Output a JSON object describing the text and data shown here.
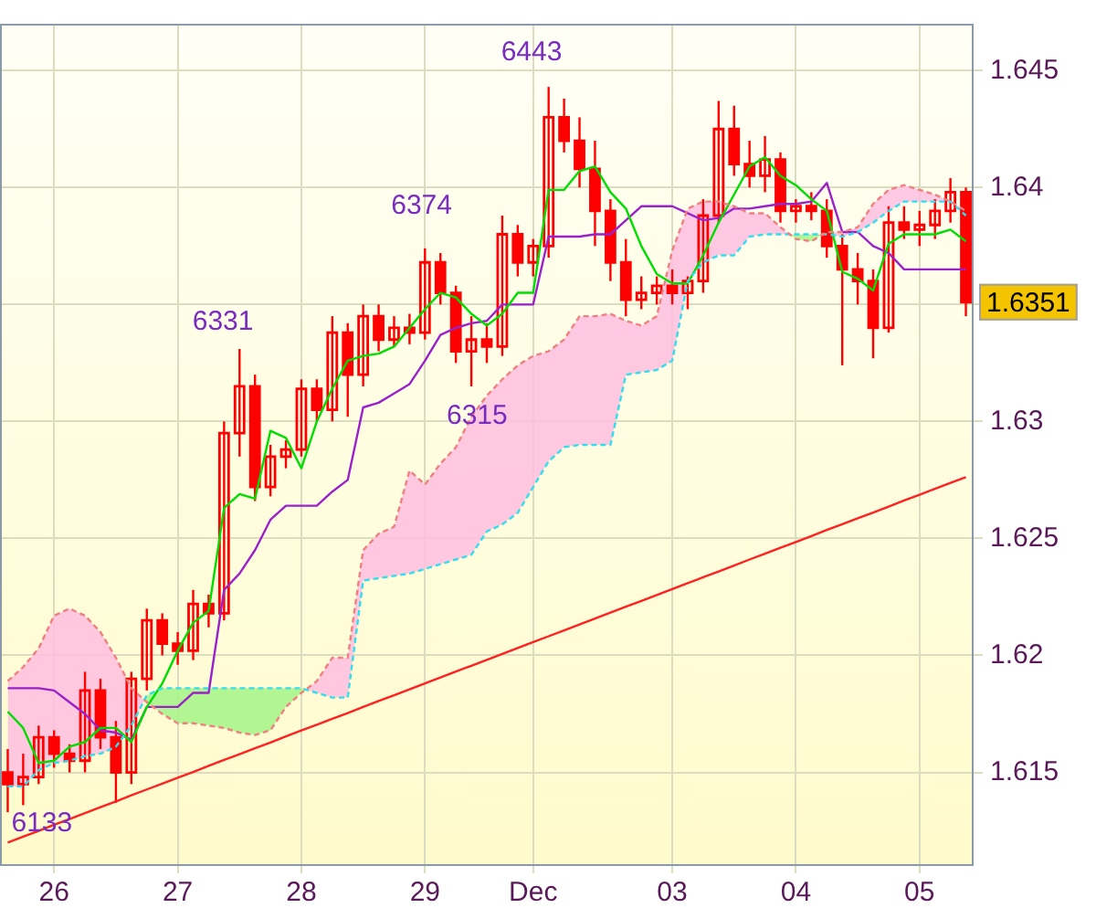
{
  "chart_data": {
    "type": "candlestick",
    "color": "#ff0000",
    "categories": [
      null,
      null,
      null,
      "26",
      null,
      null,
      null,
      null,
      null,
      null,
      null,
      "27",
      null,
      null,
      null,
      null,
      null,
      null,
      null,
      "28",
      null,
      null,
      null,
      null,
      null,
      null,
      null,
      "29",
      null,
      null,
      null,
      null,
      null,
      null,
      "Dec",
      null,
      null,
      null,
      null,
      null,
      null,
      null,
      null,
      "03",
      null,
      null,
      null,
      null,
      null,
      null,
      null,
      "04",
      null,
      null,
      null,
      null,
      null,
      null,
      null,
      "05",
      null,
      null,
      null
    ],
    "ohlc": [
      [
        1.615,
        1.616,
        1.6133,
        1.6145
      ],
      [
        1.6145,
        1.6158,
        1.6136,
        1.6148
      ],
      [
        1.6148,
        1.617,
        1.6145,
        1.6165
      ],
      [
        1.6165,
        1.6168,
        1.6152,
        1.6158
      ],
      [
        1.6158,
        1.6162,
        1.615,
        1.6155
      ],
      [
        1.6155,
        1.6193,
        1.615,
        1.6185
      ],
      [
        1.6185,
        1.619,
        1.616,
        1.6165
      ],
      [
        1.6165,
        1.6172,
        1.6137,
        1.615
      ],
      [
        1.615,
        1.6193,
        1.6145,
        1.619
      ],
      [
        1.619,
        1.622,
        1.6185,
        1.6215
      ],
      [
        1.6215,
        1.6218,
        1.62,
        1.6205
      ],
      [
        1.6205,
        1.621,
        1.6196,
        1.6202
      ],
      [
        1.6202,
        1.6228,
        1.6198,
        1.6222
      ],
      [
        1.6222,
        1.6226,
        1.6212,
        1.6218
      ],
      [
        1.6218,
        1.63,
        1.6215,
        1.6295
      ],
      [
        1.6295,
        1.6331,
        1.6285,
        1.6315
      ],
      [
        1.6315,
        1.632,
        1.6266,
        1.6272
      ],
      [
        1.6272,
        1.629,
        1.6268,
        1.6285
      ],
      [
        1.6285,
        1.6292,
        1.628,
        1.6288
      ],
      [
        1.6288,
        1.6318,
        1.6285,
        1.6314
      ],
      [
        1.6314,
        1.6318,
        1.63,
        1.6305
      ],
      [
        1.6305,
        1.6345,
        1.63,
        1.6338
      ],
      [
        1.6338,
        1.6342,
        1.6302,
        1.632
      ],
      [
        1.632,
        1.635,
        1.6315,
        1.6345
      ],
      [
        1.6345,
        1.635,
        1.633,
        1.6335
      ],
      [
        1.6335,
        1.6345,
        1.6332,
        1.634
      ],
      [
        1.634,
        1.6346,
        1.6333,
        1.6338
      ],
      [
        1.6338,
        1.6374,
        1.6335,
        1.6368
      ],
      [
        1.6368,
        1.6372,
        1.635,
        1.6355
      ],
      [
        1.6355,
        1.6358,
        1.6325,
        1.633
      ],
      [
        1.633,
        1.6345,
        1.6315,
        1.6335
      ],
      [
        1.6335,
        1.6342,
        1.6325,
        1.6332
      ],
      [
        1.6332,
        1.6388,
        1.6328,
        1.638
      ],
      [
        1.638,
        1.6384,
        1.6362,
        1.6368
      ],
      [
        1.6368,
        1.6378,
        1.6362,
        1.6375
      ],
      [
        1.6375,
        1.6443,
        1.637,
        1.643
      ],
      [
        1.643,
        1.6438,
        1.6415,
        1.642
      ],
      [
        1.642,
        1.643,
        1.64,
        1.6408
      ],
      [
        1.6408,
        1.642,
        1.6375,
        1.639
      ],
      [
        1.639,
        1.6395,
        1.636,
        1.6368
      ],
      [
        1.6368,
        1.6378,
        1.6345,
        1.6352
      ],
      [
        1.6352,
        1.6362,
        1.6348,
        1.6355
      ],
      [
        1.6355,
        1.6362,
        1.635,
        1.6358
      ],
      [
        1.6358,
        1.6365,
        1.635,
        1.6355
      ],
      [
        1.6355,
        1.6362,
        1.6348,
        1.636
      ],
      [
        1.636,
        1.6395,
        1.6355,
        1.6388
      ],
      [
        1.6388,
        1.6437,
        1.6385,
        1.6425
      ],
      [
        1.6425,
        1.6435,
        1.6405,
        1.641
      ],
      [
        1.641,
        1.642,
        1.64,
        1.6405
      ],
      [
        1.6405,
        1.6422,
        1.6398,
        1.6412
      ],
      [
        1.6412,
        1.6415,
        1.6385,
        1.639
      ],
      [
        1.639,
        1.6395,
        1.6385,
        1.6392
      ],
      [
        1.6392,
        1.6398,
        1.6386,
        1.639
      ],
      [
        1.639,
        1.6395,
        1.637,
        1.6375
      ],
      [
        1.6375,
        1.638,
        1.6324,
        1.6365
      ],
      [
        1.6365,
        1.6372,
        1.635,
        1.636
      ],
      [
        1.636,
        1.6365,
        1.6327,
        1.634
      ],
      [
        1.634,
        1.6392,
        1.6338,
        1.6385
      ],
      [
        1.6385,
        1.6392,
        1.6378,
        1.6382
      ],
      [
        1.6382,
        1.639,
        1.6375,
        1.6384
      ],
      [
        1.6384,
        1.6395,
        1.6378,
        1.639
      ],
      [
        1.639,
        1.6404,
        1.6385,
        1.6398
      ],
      [
        1.6398,
        1.64,
        1.6345,
        1.6351
      ]
    ],
    "series": [
      {
        "type": "line",
        "line_style": "dashed",
        "color": "#f08080",
        "values": [
          1.6189,
          1.6195,
          1.6203,
          1.6217,
          1.622,
          1.6217,
          1.621,
          1.6199,
          1.6186,
          1.618,
          1.6175,
          1.6171,
          1.6171,
          1.617,
          1.6169,
          1.6167,
          1.6166,
          1.6168,
          1.6178,
          1.6184,
          1.6189,
          1.6199,
          1.6199,
          1.6245,
          1.6252,
          1.6255,
          1.6279,
          1.6273,
          1.6282,
          1.6289,
          1.6302,
          1.6311,
          1.6318,
          1.6324,
          1.6328,
          1.633,
          1.6335,
          1.6345,
          1.6345,
          1.6346,
          1.6343,
          1.6341,
          1.6345,
          1.6373,
          1.6391,
          1.6394,
          1.6394,
          1.6392,
          1.6389,
          1.6389,
          1.6383,
          1.6378,
          1.6377,
          1.6381,
          1.6381,
          1.6383,
          1.6393,
          1.6399,
          1.6401,
          1.6399,
          1.6397,
          1.6394,
          1.639
        ],
        "upper": [
          1.6189,
          1.6195,
          1.6203,
          1.6217,
          1.622,
          1.6217,
          1.621,
          1.6199,
          1.6186,
          1.618,
          1.6175,
          1.6171,
          1.6171,
          1.617,
          1.6169,
          1.6167,
          1.6166,
          1.6168,
          1.6178,
          1.6184,
          1.6189,
          1.6199,
          1.6199,
          1.6245,
          1.6252,
          1.6255,
          1.6279,
          1.6273,
          1.6282,
          1.6289,
          1.6302,
          1.6311,
          1.6318,
          1.6324,
          1.6328,
          1.633,
          1.6335,
          1.6345,
          1.6345,
          1.6346,
          1.6343,
          1.6341,
          1.6345,
          1.6373,
          1.6391,
          1.6394,
          1.6394,
          1.6392,
          1.6389,
          1.6389,
          1.6383,
          1.6378,
          1.6377,
          1.6381,
          1.6381,
          1.6383,
          1.6393,
          1.6399,
          1.6401,
          1.6399,
          1.6397,
          1.6394,
          1.639
        ],
        "lower": [
          1.6144,
          1.6144,
          1.6151,
          1.6154,
          1.6155,
          1.6157,
          1.6158,
          1.6161,
          1.617,
          1.6183,
          1.6186,
          1.6186,
          1.6186,
          1.6186,
          1.6186,
          1.6186,
          1.6186,
          1.6186,
          1.6186,
          1.6186,
          1.6184,
          1.6182,
          1.6182,
          1.6232,
          1.6233,
          1.6234,
          1.6235,
          1.6237,
          1.6239,
          1.6241,
          1.6243,
          1.6253,
          1.6256,
          1.6261,
          1.6272,
          1.6283,
          1.6289,
          1.629,
          1.629,
          1.629,
          1.632,
          1.6321,
          1.6322,
          1.6326,
          1.636,
          1.6368,
          1.6371,
          1.6371,
          1.6379,
          1.638,
          1.638,
          1.638,
          1.638,
          1.638,
          1.6379,
          1.6381,
          1.6385,
          1.639,
          1.6394,
          1.6394,
          1.6394,
          1.6394,
          1.6388
        ]
      },
      {
        "type": "line",
        "line_style": "dashed",
        "color": "#33ddee",
        "values": [
          1.6144,
          1.6144,
          1.6151,
          1.6154,
          1.6155,
          1.6157,
          1.6158,
          1.6161,
          1.617,
          1.6183,
          1.6186,
          1.6186,
          1.6186,
          1.6186,
          1.6186,
          1.6186,
          1.6186,
          1.6186,
          1.6186,
          1.6186,
          1.6184,
          1.6182,
          1.6182,
          1.6232,
          1.6233,
          1.6234,
          1.6235,
          1.6237,
          1.6239,
          1.6241,
          1.6243,
          1.6253,
          1.6256,
          1.6261,
          1.6272,
          1.6283,
          1.6289,
          1.629,
          1.629,
          1.629,
          1.632,
          1.6321,
          1.6322,
          1.6326,
          1.636,
          1.6368,
          1.6371,
          1.6371,
          1.6379,
          1.638,
          1.638,
          1.638,
          1.638,
          1.638,
          1.6379,
          1.6381,
          1.6385,
          1.639,
          1.6394,
          1.6394,
          1.6394,
          1.6394,
          1.6388
        ]
      },
      {
        "type": "line",
        "color": "#00dd00",
        "values": [
          1.6176,
          1.6169,
          1.6154,
          1.6155,
          1.6161,
          1.6163,
          1.6169,
          1.6169,
          1.6163,
          1.6178,
          1.6188,
          1.6202,
          1.6214,
          1.6219,
          1.6263,
          1.6269,
          1.6267,
          1.6296,
          1.6293,
          1.628,
          1.63,
          1.6314,
          1.6326,
          1.6328,
          1.6329,
          1.6332,
          1.634,
          1.6348,
          1.6355,
          1.6353,
          1.6346,
          1.6341,
          1.6346,
          1.6355,
          1.6355,
          1.6399,
          1.6399,
          1.6407,
          1.6409,
          1.6398,
          1.6391,
          1.6375,
          1.6363,
          1.6359,
          1.6359,
          1.6371,
          1.6385,
          1.6397,
          1.6409,
          1.6413,
          1.6405,
          1.6401,
          1.6395,
          1.639,
          1.6364,
          1.6361,
          1.6356,
          1.6376,
          1.638,
          1.638,
          1.638,
          1.6382,
          1.6377
        ]
      },
      {
        "type": "line",
        "color": "#9a22c8",
        "values": [
          1.6186,
          1.6186,
          1.6186,
          1.6185,
          1.618,
          1.6175,
          1.6168,
          1.6167,
          1.6164,
          1.6178,
          1.6178,
          1.6178,
          1.6184,
          1.6184,
          1.6228,
          1.6235,
          1.6245,
          1.6258,
          1.6264,
          1.6264,
          1.6264,
          1.627,
          1.6275,
          1.6306,
          1.6308,
          1.6312,
          1.6316,
          1.6326,
          1.6337,
          1.634,
          1.6342,
          1.6343,
          1.635,
          1.635,
          1.635,
          1.6379,
          1.6379,
          1.6379,
          1.638,
          1.638,
          1.6386,
          1.6392,
          1.6392,
          1.6392,
          1.6389,
          1.6386,
          1.6387,
          1.6391,
          1.6391,
          1.6392,
          1.6393,
          1.6393,
          1.6394,
          1.6402,
          1.6381,
          1.6381,
          1.6375,
          1.6372,
          1.6365,
          1.6365,
          1.6365,
          1.6365,
          1.6365
        ]
      },
      {
        "type": "line",
        "color": "#ff2020",
        "values": [
          1.612,
          1.61225,
          1.6125,
          1.61276,
          1.61301,
          1.61326,
          1.61351,
          1.61376,
          1.61402,
          1.61427,
          1.61452,
          1.61477,
          1.61502,
          1.61528,
          1.61553,
          1.61578,
          1.61603,
          1.61628,
          1.61654,
          1.61679,
          1.61704,
          1.61729,
          1.61754,
          1.6178,
          1.61805,
          1.6183,
          1.61855,
          1.6188,
          1.61906,
          1.61931,
          1.61956,
          1.61981,
          1.62006,
          1.62032,
          1.62057,
          1.62082,
          1.62107,
          1.62132,
          1.62158,
          1.62183,
          1.62208,
          1.62233,
          1.62258,
          1.62284,
          1.62309,
          1.62334,
          1.62359,
          1.62384,
          1.6241,
          1.62435,
          1.6246,
          1.62485,
          1.6251,
          1.62536,
          1.62561,
          1.62586,
          1.62611,
          1.62636,
          1.62662,
          1.62687,
          1.62712,
          1.62737,
          1.62762
        ]
      }
    ],
    "ylim": [
      1.611,
      1.647
    ],
    "yticks": [
      1.615,
      1.62,
      1.625,
      1.63,
      {
        "value": 1.635,
        "label": null
      },
      1.64,
      1.645
    ],
    "grid": true,
    "annotations": [
      "6133",
      "6331",
      "6374",
      "6443",
      "6315",
      "1.6351"
    ]
  }
}
